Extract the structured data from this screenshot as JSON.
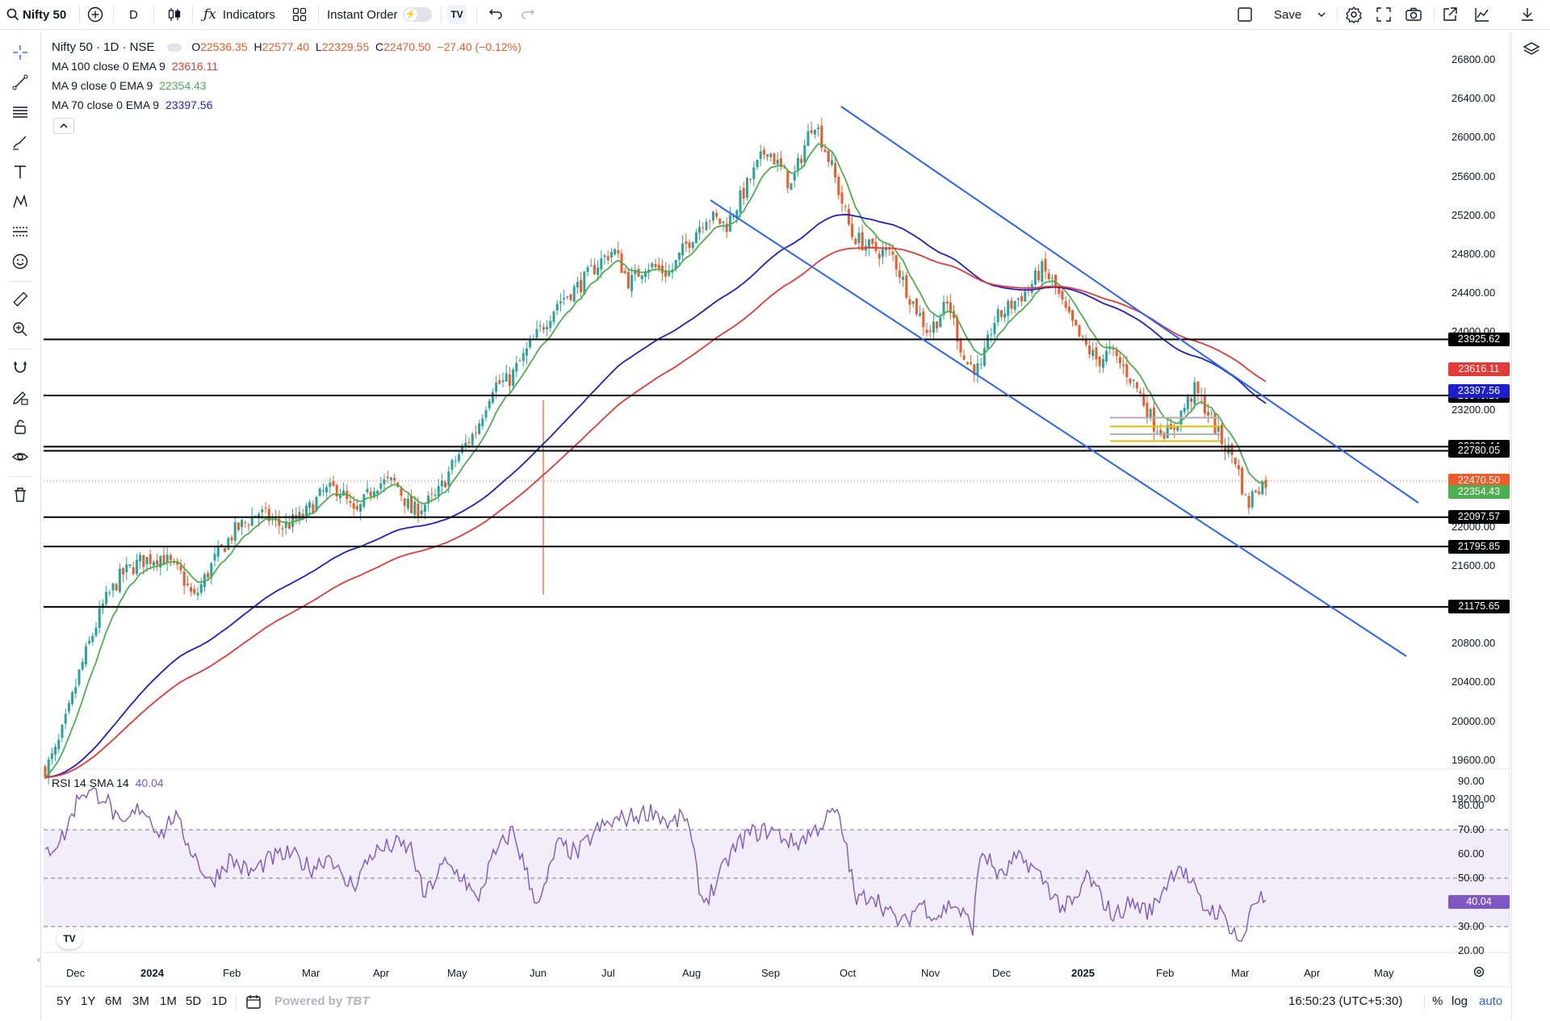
{
  "toolbar": {
    "symbol": "Nifty 50",
    "interval": "D",
    "indicators_label": "Indicators",
    "instant_order_label": "Instant Order",
    "save_label": "Save"
  },
  "legend": {
    "title": "Nifty 50 · 1D · NSE",
    "open_label": "O",
    "open": "22536.35",
    "high_label": "H",
    "high": "22577.40",
    "low_label": "L",
    "low": "22329.55",
    "close_label": "C",
    "close": "22470.50",
    "change": "−27.40 (−0.12%)",
    "ma100_label": "MA 100 close 0 EMA 9",
    "ma100_value": "23616.11",
    "ma9_label": "MA 9 close 0 EMA 9",
    "ma9_value": "22354.43",
    "ma70_label": "MA 70 close 0 EMA 9",
    "ma70_value": "23397.56",
    "rsi_label": "RSI 14 SMA 14",
    "rsi_value": "40.04"
  },
  "price_axis": {
    "ticks": [
      "26800.00",
      "26400.00",
      "26000.00",
      "25600.00",
      "25200.00",
      "24800.00",
      "24400.00",
      "24000.00",
      "23600.00",
      "23200.00",
      "22800.00",
      "22400.00",
      "22000.00",
      "21600.00",
      "21200.00",
      "20800.00",
      "20400.00",
      "20000.00",
      "19600.00",
      "19200.00"
    ]
  },
  "rsi_axis": {
    "ticks": [
      "90.00",
      "80.00",
      "70.00",
      "60.00",
      "50.00",
      "40.00",
      "30.00",
      "20.00"
    ]
  },
  "time_axis": {
    "labels": [
      "Dec",
      "2024",
      "Feb",
      "Mar",
      "Apr",
      "May",
      "Jun",
      "Jul",
      "Aug",
      "Sep",
      "Oct",
      "Nov",
      "Dec",
      "2025",
      "Feb",
      "Mar",
      "Apr",
      "May"
    ]
  },
  "horizontal_levels": [
    "23925.62",
    "23348.10",
    "22822.44",
    "22780.05",
    "22097.57",
    "21795.85",
    "21175.65"
  ],
  "price_labels": {
    "ma100": "23616.11",
    "ma70": "23397.56",
    "last": "22470.50",
    "ma9": "22354.43",
    "rsi": "40.04"
  },
  "colors": {
    "up": "#26a69a",
    "down": "#f05a28",
    "ma100": "#e53935",
    "ma9": "#4caf50",
    "ma70": "#1e1ed1",
    "rsi": "#7e57c2",
    "trend": "#2962ff"
  },
  "bottombar": {
    "ranges": [
      "5Y",
      "1Y",
      "6M",
      "3M",
      "1M",
      "5D",
      "1D"
    ],
    "powered_by": "Powered by",
    "time": "16:50:23 (UTC+5:30)",
    "percent": "%",
    "log": "log",
    "auto": "auto"
  }
}
